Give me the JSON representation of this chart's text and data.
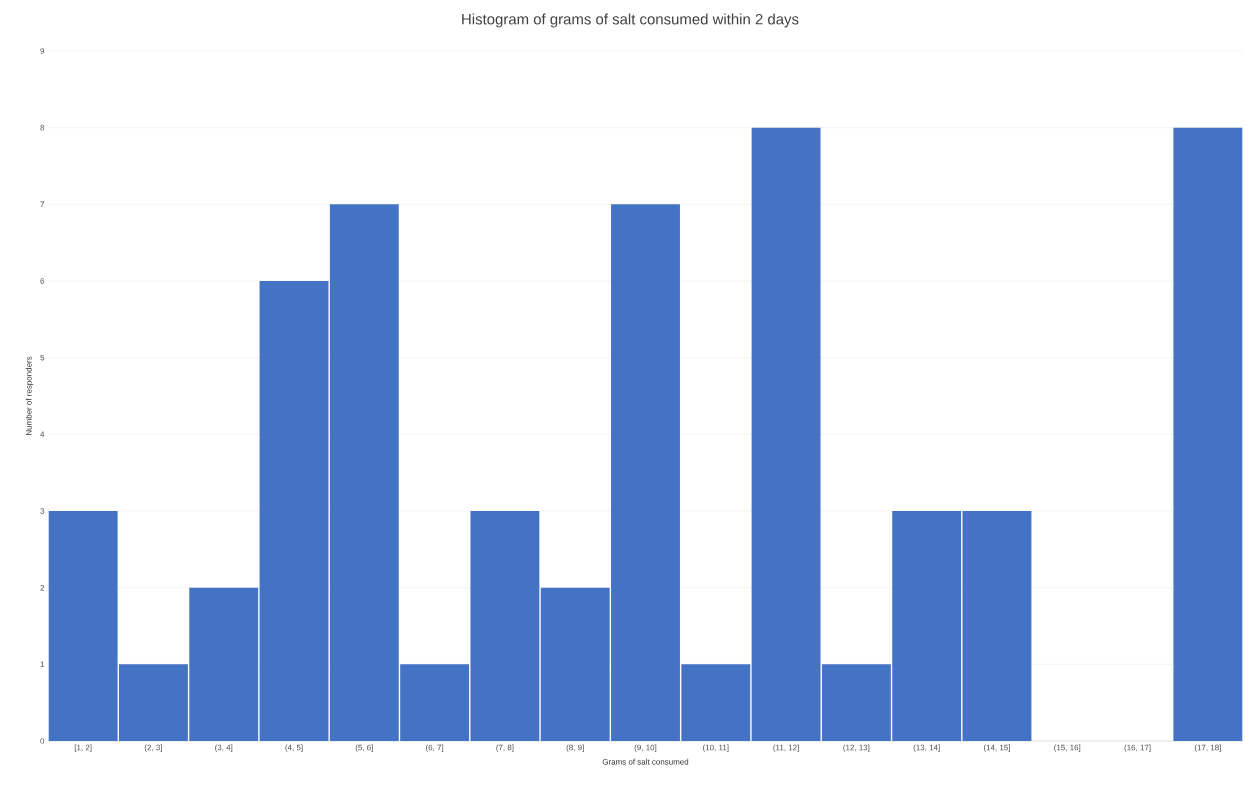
{
  "chart_data": {
    "type": "bar",
    "title": "Histogram of grams of salt consumed within 2 days",
    "xlabel": "Grams of salt consumed",
    "ylabel": "Number of responders",
    "categories": [
      "[1, 2]",
      "(2, 3]",
      "(3, 4]",
      "(4, 5]",
      "(5, 6]",
      "(6, 7]",
      "(7, 8]",
      "(8, 9]",
      "(9, 10]",
      "(10, 11]",
      "(11, 12]",
      "(12, 13]",
      "(13, 14]",
      "(14, 15]",
      "(15, 16]",
      "(16, 17]",
      "(17, 18]"
    ],
    "values": [
      3,
      1,
      2,
      6,
      7,
      1,
      3,
      2,
      7,
      1,
      8,
      1,
      3,
      3,
      0,
      0,
      8
    ],
    "color": "#4472c4",
    "ylim": [
      0,
      9
    ],
    "yticks": [
      0,
      1,
      2,
      3,
      4,
      5,
      6,
      7,
      8,
      9
    ],
    "grid": "y"
  }
}
